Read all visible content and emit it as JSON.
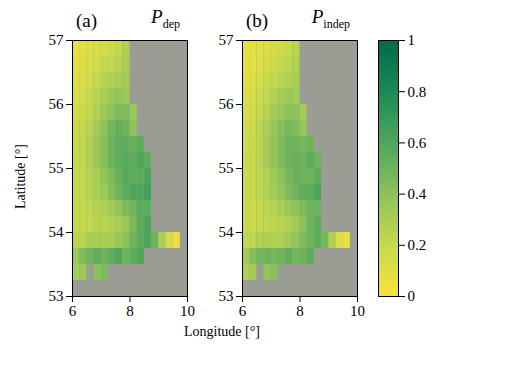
{
  "chart_data": {
    "type": "heatmap",
    "x_label": "Longitude [°]",
    "y_label": "Latitude [°]",
    "xlim": [
      6,
      10
    ],
    "ylim": [
      53,
      57
    ],
    "xticks": [
      6,
      8,
      10
    ],
    "yticks": [
      53,
      54,
      55,
      56,
      57
    ],
    "x_edges": [
      6,
      6.25,
      6.5,
      6.75,
      7,
      7.25,
      7.5,
      7.75,
      8,
      8.25,
      8.5,
      8.75,
      9,
      9.25,
      9.5,
      9.75,
      10
    ],
    "y_edges": [
      53,
      53.25,
      53.5,
      53.75,
      54,
      54.25,
      54.5,
      54.75,
      55,
      55.25,
      55.5,
      55.75,
      56,
      56.25,
      56.5,
      56.75,
      57
    ],
    "colorbar": {
      "range": [
        0,
        1
      ],
      "ticks": [
        0,
        0.2,
        0.4,
        0.6,
        0.8,
        1
      ]
    },
    "panels": [
      {
        "letter": "(a)",
        "title": "P",
        "title_subscript": "dep",
        "values": [
          [
            null,
            null,
            null,
            null,
            null,
            null,
            null,
            null,
            null,
            null,
            null,
            null,
            null,
            null,
            null,
            null
          ],
          [
            0.3,
            0.35,
            null,
            0.4,
            0.45,
            null,
            null,
            null,
            null,
            null,
            null,
            null,
            null,
            null,
            null,
            null
          ],
          [
            0.35,
            0.45,
            0.5,
            0.55,
            0.5,
            0.55,
            0.6,
            0.5,
            0.55,
            0.6,
            null,
            null,
            null,
            null,
            null,
            null
          ],
          [
            0.25,
            0.25,
            0.3,
            0.3,
            0.3,
            0.3,
            0.35,
            0.4,
            0.5,
            0.55,
            0.6,
            0.5,
            0.3,
            0.15,
            0.05,
            null
          ],
          [
            0.2,
            0.2,
            0.22,
            0.24,
            0.25,
            0.27,
            0.3,
            0.35,
            0.45,
            0.55,
            0.6,
            null,
            null,
            null,
            null,
            null
          ],
          [
            0.2,
            0.2,
            0.22,
            0.25,
            0.28,
            0.32,
            0.38,
            0.45,
            0.5,
            0.55,
            0.55,
            null,
            null,
            null,
            null,
            null
          ],
          [
            0.2,
            0.22,
            0.25,
            0.3,
            0.35,
            0.42,
            0.5,
            0.55,
            0.6,
            0.6,
            0.65,
            null,
            null,
            null,
            null,
            null
          ],
          [
            0.2,
            0.22,
            0.25,
            0.3,
            0.38,
            0.45,
            0.52,
            0.58,
            0.55,
            0.55,
            0.6,
            null,
            null,
            null,
            null,
            null
          ],
          [
            0.2,
            0.22,
            0.28,
            0.35,
            0.42,
            0.5,
            0.55,
            0.58,
            0.55,
            0.6,
            0.55,
            null,
            null,
            null,
            null,
            null
          ],
          [
            0.18,
            0.22,
            0.28,
            0.35,
            0.42,
            0.5,
            0.55,
            0.55,
            0.52,
            0.55,
            null,
            null,
            null,
            null,
            null,
            null
          ],
          [
            0.18,
            0.2,
            0.25,
            0.32,
            0.4,
            0.48,
            0.52,
            0.5,
            0.4,
            null,
            null,
            null,
            null,
            null,
            null,
            null
          ],
          [
            0.15,
            0.18,
            0.22,
            0.28,
            0.35,
            0.4,
            0.45,
            0.45,
            0.35,
            null,
            null,
            null,
            null,
            null,
            null,
            null
          ],
          [
            0.12,
            0.15,
            0.2,
            0.25,
            0.3,
            0.35,
            0.38,
            0.35,
            null,
            null,
            null,
            null,
            null,
            null,
            null,
            null
          ],
          [
            0.1,
            0.12,
            0.15,
            0.2,
            0.25,
            0.28,
            0.3,
            0.32,
            null,
            null,
            null,
            null,
            null,
            null,
            null,
            null
          ],
          [
            0.08,
            0.1,
            0.12,
            0.15,
            0.2,
            0.22,
            0.25,
            0.3,
            null,
            null,
            null,
            null,
            null,
            null,
            null,
            null
          ],
          [
            0.05,
            0.08,
            0.1,
            0.12,
            0.15,
            0.18,
            0.22,
            0.28,
            null,
            null,
            null,
            null,
            null,
            null,
            null,
            null
          ]
        ]
      },
      {
        "letter": "(b)",
        "title": "P",
        "title_subscript": "indep",
        "values": [
          [
            null,
            null,
            null,
            null,
            null,
            null,
            null,
            null,
            null,
            null,
            null,
            null,
            null,
            null,
            null,
            null
          ],
          [
            0.28,
            0.32,
            null,
            0.38,
            0.42,
            null,
            null,
            null,
            null,
            null,
            null,
            null,
            null,
            null,
            null,
            null
          ],
          [
            0.32,
            0.42,
            0.48,
            0.5,
            0.48,
            0.5,
            0.55,
            0.48,
            0.5,
            0.55,
            null,
            null,
            null,
            null,
            null,
            null
          ],
          [
            0.22,
            0.23,
            0.27,
            0.28,
            0.28,
            0.28,
            0.32,
            0.37,
            0.45,
            0.5,
            0.55,
            0.48,
            0.28,
            0.12,
            0.05,
            null
          ],
          [
            0.18,
            0.18,
            0.2,
            0.22,
            0.23,
            0.25,
            0.28,
            0.32,
            0.4,
            0.5,
            0.55,
            null,
            null,
            null,
            null,
            null
          ],
          [
            0.18,
            0.18,
            0.2,
            0.23,
            0.26,
            0.3,
            0.35,
            0.4,
            0.45,
            0.5,
            0.5,
            null,
            null,
            null,
            null,
            null
          ],
          [
            0.18,
            0.2,
            0.23,
            0.27,
            0.32,
            0.38,
            0.45,
            0.5,
            0.55,
            0.55,
            0.6,
            null,
            null,
            null,
            null,
            null
          ],
          [
            0.18,
            0.2,
            0.23,
            0.28,
            0.35,
            0.4,
            0.47,
            0.52,
            0.5,
            0.5,
            0.55,
            null,
            null,
            null,
            null,
            null
          ],
          [
            0.18,
            0.2,
            0.25,
            0.32,
            0.38,
            0.45,
            0.5,
            0.52,
            0.5,
            0.55,
            0.5,
            null,
            null,
            null,
            null,
            null
          ],
          [
            0.16,
            0.2,
            0.25,
            0.32,
            0.38,
            0.45,
            0.5,
            0.5,
            0.48,
            0.5,
            null,
            null,
            null,
            null,
            null,
            null
          ],
          [
            0.16,
            0.18,
            0.23,
            0.3,
            0.36,
            0.43,
            0.47,
            0.45,
            0.37,
            null,
            null,
            null,
            null,
            null,
            null,
            null
          ],
          [
            0.13,
            0.16,
            0.2,
            0.25,
            0.32,
            0.36,
            0.4,
            0.4,
            0.32,
            null,
            null,
            null,
            null,
            null,
            null,
            null
          ],
          [
            0.11,
            0.13,
            0.18,
            0.22,
            0.27,
            0.32,
            0.34,
            0.32,
            null,
            null,
            null,
            null,
            null,
            null,
            null,
            null
          ],
          [
            0.09,
            0.11,
            0.14,
            0.18,
            0.22,
            0.25,
            0.27,
            0.3,
            null,
            null,
            null,
            null,
            null,
            null,
            null,
            null
          ],
          [
            0.07,
            0.09,
            0.11,
            0.14,
            0.18,
            0.2,
            0.23,
            0.27,
            null,
            null,
            null,
            null,
            null,
            null,
            null,
            null
          ],
          [
            0.05,
            0.07,
            0.09,
            0.11,
            0.14,
            0.16,
            0.2,
            0.25,
            null,
            null,
            null,
            null,
            null,
            null,
            null,
            null
          ]
        ]
      }
    ]
  }
}
